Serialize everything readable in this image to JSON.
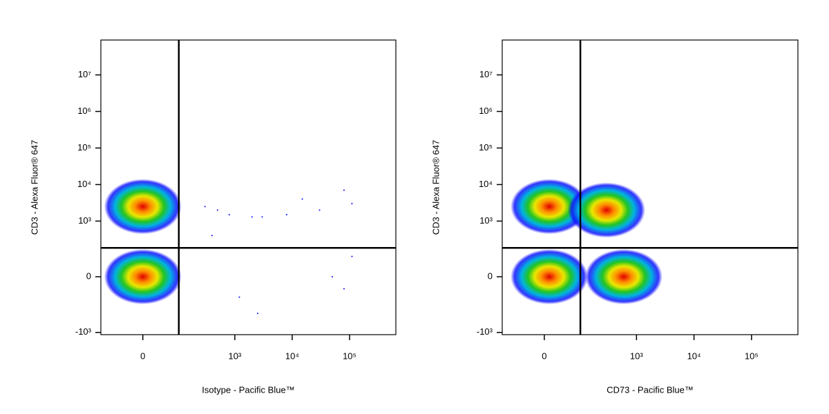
{
  "chart_data": [
    {
      "type": "scatter",
      "x_label": "Isotype - Pacific Blue™",
      "y_label": "CD3 - Alexa Fluor® 647",
      "xlim": [
        -130,
        640000
      ],
      "ylim": [
        -1150,
        90000000
      ],
      "xticks": [
        0,
        {
          "value": 1000,
          "label": "10³"
        },
        {
          "value": 10000,
          "label": "10⁴"
        },
        {
          "value": 100000,
          "label": "10⁵"
        }
      ],
      "yticks": [
        {
          "value": -1000,
          "label": "-10³"
        },
        0,
        {
          "value": 1000,
          "label": "10³"
        },
        {
          "value": 10000,
          "label": "10⁴"
        },
        {
          "value": 100000,
          "label": "10⁵"
        },
        {
          "value": 1000000,
          "label": "10⁶"
        },
        {
          "value": 10000000,
          "label": "10⁷"
        }
      ],
      "gates": {
        "x": 100,
        "y": 180
      },
      "populations": [
        {
          "x": 0,
          "y": 2500
        },
        {
          "x": 0,
          "y": 0
        }
      ],
      "points": {
        "color": "#0000ff",
        "x": [
          300,
          500,
          800,
          2000,
          3000,
          8000,
          15000,
          30000,
          80000,
          110000,
          400,
          1200,
          2500,
          50000,
          80000,
          110000
        ],
        "y": [
          2500,
          2000,
          1500,
          1300,
          1300,
          1500,
          4000,
          2000,
          7000,
          3000,
          400,
          -100,
          -300,
          0,
          -50,
          100
        ]
      }
    },
    {
      "type": "scatter",
      "x_label": "CD73 - Pacific Blue™",
      "y_label": "CD3 - Alexa Fluor® 647",
      "xlim": [
        -130,
        640000
      ],
      "ylim": [
        -1150,
        90000000
      ],
      "xticks": [
        0,
        {
          "value": 1000,
          "label": "10³"
        },
        {
          "value": 10000,
          "label": "10⁴"
        },
        {
          "value": 100000,
          "label": "10⁵"
        }
      ],
      "yticks": [
        {
          "value": -1000,
          "label": "-10³"
        },
        0,
        {
          "value": 1000,
          "label": "10³"
        },
        {
          "value": 10000,
          "label": "10⁴"
        },
        {
          "value": 100000,
          "label": "10⁵"
        },
        {
          "value": 1000000,
          "label": "10⁶"
        },
        {
          "value": 10000000,
          "label": "10⁷"
        }
      ],
      "gates": {
        "x": 100,
        "y": 180
      },
      "populations": [
        {
          "x": 10,
          "y": 2500
        },
        {
          "x": 300,
          "y": 2000
        },
        {
          "x": 10,
          "y": 0
        },
        {
          "x": 600,
          "y": 0
        }
      ],
      "points": {
        "color": "#0000ff",
        "x": [],
        "y": []
      }
    }
  ]
}
